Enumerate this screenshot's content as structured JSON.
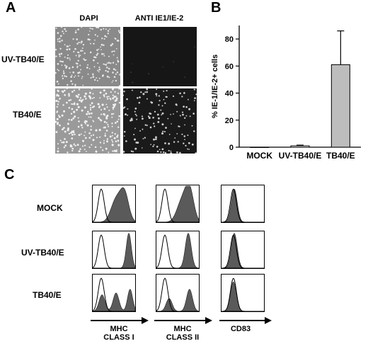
{
  "panelA": {
    "label": "A",
    "col_headers": [
      "DAPI",
      "ANTI IE1/IE-2"
    ],
    "row_labels": [
      "UV-TB40/E",
      "TB40/E"
    ]
  },
  "panelB": {
    "label": "B"
  },
  "panelC": {
    "label": "C",
    "row_labels": [
      "MOCK",
      "UV-TB40/E",
      "TB40/E"
    ],
    "axis_labels": [
      [
        "MHC",
        "CLASS I"
      ],
      [
        "MHC",
        "CLASS II"
      ],
      [
        "CD83"
      ]
    ]
  },
  "chart_data": {
    "type": "bar",
    "categories": [
      "MOCK",
      "UV-TB40/E",
      "TB40/E"
    ],
    "values": [
      0,
      1,
      61
    ],
    "errors": [
      0,
      0.5,
      25
    ],
    "ylabel": "% IE-1/IE-2+ cells",
    "ylim": [
      0,
      90
    ],
    "yticks": [
      0,
      20,
      40,
      60,
      80
    ],
    "colors": [
      "#ffffff",
      "#ffffff",
      "#bdbdbd"
    ],
    "grid": false
  }
}
